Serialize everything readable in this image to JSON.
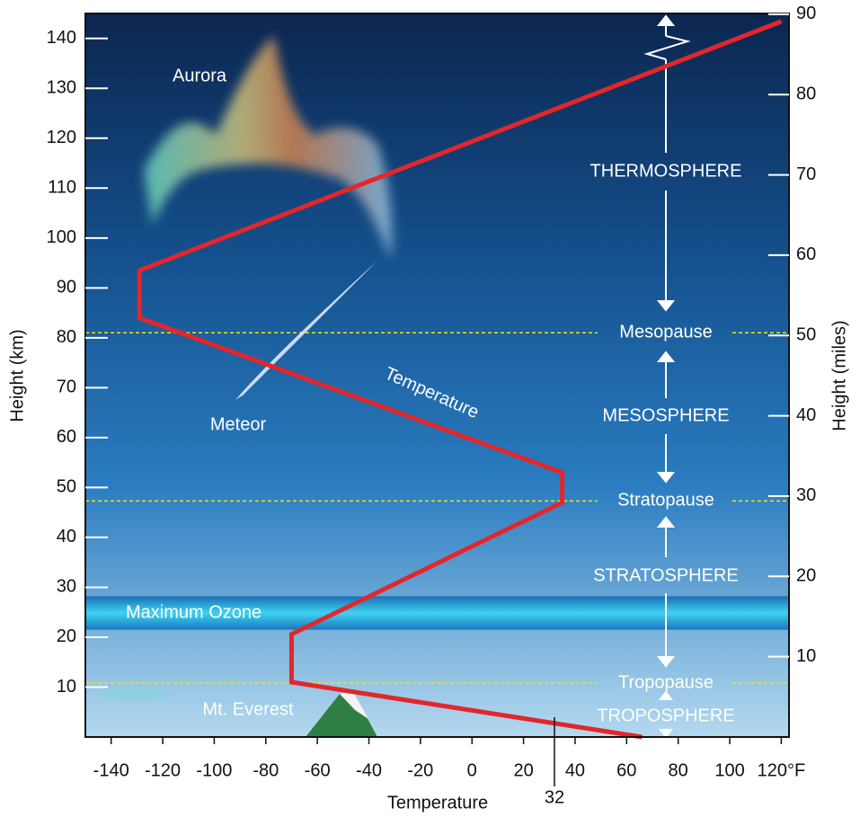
{
  "chart_data": {
    "type": "line",
    "x_label": "Temperature",
    "y_label": "Height (km)",
    "y2_label": "Height (miles)",
    "xlim": [
      -150,
      123
    ],
    "ylim": [
      0,
      145
    ],
    "y2lim": [
      0,
      90.1
    ],
    "xticks": [
      -140,
      -120,
      -100,
      -80,
      -60,
      -40,
      -20,
      0,
      20,
      40,
      60,
      80,
      100,
      {
        "value": 120,
        "label": "120°F"
      }
    ],
    "freezing_tick": {
      "value": 32,
      "label": "32"
    },
    "yticks": [
      10,
      20,
      30,
      40,
      50,
      60,
      70,
      80,
      90,
      100,
      110,
      120,
      130,
      140
    ],
    "y2ticks": [
      10,
      20,
      30,
      40,
      50,
      60,
      70,
      80,
      90
    ],
    "series": [
      {
        "name": "Temperature",
        "color": "#e3262b",
        "x": [
          120,
          -129,
          -129,
          35,
          35,
          -70,
          -70,
          66
        ],
        "values": [
          143.4,
          93.5,
          84,
          53,
          47,
          20.6,
          11,
          0
        ]
      }
    ],
    "boundaries": [
      {
        "name": "Mesopause",
        "height": 81
      },
      {
        "name": "Stratopause",
        "height": 47.3
      },
      {
        "name": "Tropopause",
        "height": 10.8
      }
    ],
    "layers": [
      "THERMOSPHERE",
      "MESOSPHERE",
      "STRATOSPHERE",
      "TROPOSPHERE"
    ],
    "ozone_band": {
      "label": "Maximum Ozone",
      "range": [
        21.5,
        28.2
      ]
    },
    "annotations": [
      "Aurora",
      "Meteor",
      "Mt. Everest"
    ]
  }
}
